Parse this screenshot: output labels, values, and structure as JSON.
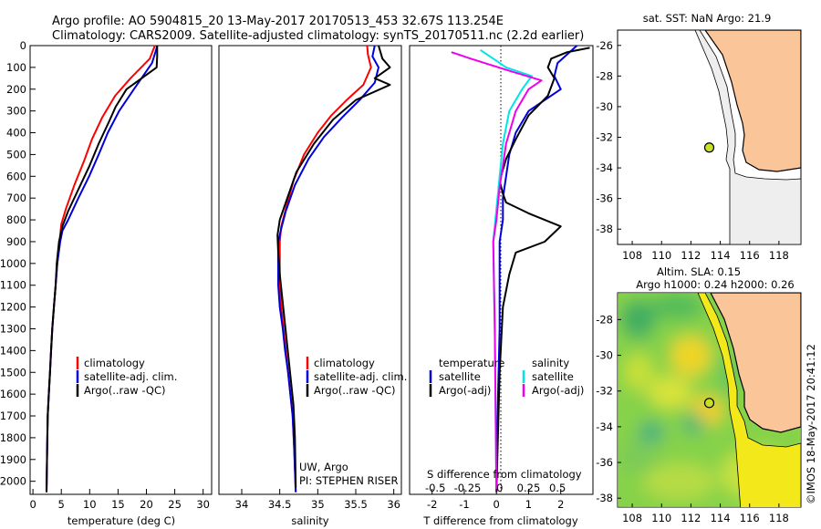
{
  "header": {
    "line1": "Argo profile: AO 5904815_20 13-May-2017 20170513_453 32.67S 113.254E",
    "line2": "Climatology: CARS2009. Satellite-adjusted climatology: synTS_20170511.nc (2.2d earlier)"
  },
  "colors": {
    "climatology": "#ff0000",
    "satellite": "#0000dd",
    "argo": "#000000",
    "salinity_sat": "#00e5e5",
    "salinity_argo": "#ee00ee",
    "land": "#fbc59a",
    "marker": "#c8e028"
  },
  "depth_axis": {
    "ticks": [
      0,
      100,
      200,
      300,
      400,
      500,
      600,
      700,
      800,
      900,
      1000,
      1100,
      1200,
      1300,
      1400,
      1500,
      1600,
      1700,
      1800,
      1900,
      2000
    ],
    "range": [
      0,
      2060
    ]
  },
  "legend_labels": {
    "climatology": "climatology",
    "satellite": "satellite-adj. clim.",
    "argo": "Argo(..raw -QC)"
  },
  "diff_legend": {
    "temperature": "temperature",
    "salinity": "salinity",
    "satellite": "satellite",
    "argo": "Argo(-adj)"
  },
  "pi_info": {
    "line1": "UW, Argo",
    "line2": "PI: STEPHEN RISER"
  },
  "side": {
    "sst_label": "sat. SST: NaN Argo: 21.9",
    "sla_line1": "Altim. SLA: 0.15",
    "sla_line2": "Argo h1000: 0.24 h2000: 0.26",
    "stamp": "©IMOS 18-May-2017 20:41:12"
  },
  "chart_data": [
    {
      "type": "line",
      "name": "temperature",
      "xlabel": "temperature (deg C)",
      "ylabel": "",
      "xlim": [
        -0.5,
        31.5
      ],
      "ylim": [
        2060,
        0
      ],
      "xticks": [
        0,
        5,
        10,
        15,
        20,
        25,
        30
      ],
      "series": [
        {
          "name": "climatology",
          "color": "#ff0000",
          "x": [
            21.5,
            21.2,
            20.6,
            17.2,
            14.5,
            12.2,
            10.4,
            9.0,
            7.3,
            5.8,
            5.0,
            4.7,
            4.3,
            4.0,
            3.7,
            3.4,
            3.2,
            3.0,
            2.8,
            2.6,
            2.5,
            2.4
          ],
          "y": [
            0,
            20,
            60,
            150,
            230,
            330,
            430,
            530,
            640,
            750,
            820,
            900,
            1000,
            1100,
            1200,
            1300,
            1400,
            1500,
            1600,
            1700,
            1850,
            2050
          ]
        },
        {
          "name": "satellite-adj. clim.",
          "color": "#0000dd",
          "x": [
            21.9,
            21.7,
            21.0,
            17.8,
            15.2,
            13.2,
            11.6,
            9.9,
            8.0,
            6.2,
            5.2,
            4.8,
            4.3,
            4.0,
            3.7,
            3.4,
            3.2,
            3.0,
            2.8,
            2.6,
            2.5,
            2.4
          ],
          "y": [
            0,
            20,
            80,
            200,
            300,
            400,
            500,
            600,
            700,
            800,
            850,
            900,
            1000,
            1100,
            1200,
            1300,
            1400,
            1500,
            1600,
            1700,
            1850,
            2050
          ]
        },
        {
          "name": "Argo(..raw -QC)",
          "color": "#000000",
          "x": [
            21.9,
            21.9,
            21.8,
            16.5,
            14.6,
            13.4,
            11.6,
            10.0,
            8.2,
            6.2,
            5.2,
            4.6,
            4.2,
            4.0,
            3.7,
            3.4,
            3.2,
            3.0,
            2.8,
            2.6,
            2.5,
            2.4
          ],
          "y": [
            0,
            50,
            100,
            200,
            280,
            350,
            450,
            550,
            650,
            760,
            830,
            900,
            1000,
            1100,
            1200,
            1300,
            1400,
            1500,
            1600,
            1700,
            1850,
            2050
          ]
        }
      ]
    },
    {
      "type": "line",
      "name": "salinity",
      "xlabel": "salinity",
      "ylabel": "",
      "xlim": [
        33.7,
        36.1
      ],
      "ylim": [
        2060,
        0
      ],
      "xticks": [
        34,
        34.5,
        35,
        35.5,
        36
      ],
      "series": [
        {
          "name": "climatology",
          "color": "#ff0000",
          "x": [
            35.65,
            35.66,
            35.7,
            35.6,
            35.38,
            35.18,
            35.0,
            34.82,
            34.68,
            34.58,
            34.52,
            34.5,
            34.5,
            34.5,
            34.52,
            34.55,
            34.58,
            34.61,
            34.64,
            34.67,
            34.69,
            34.71
          ],
          "y": [
            0,
            40,
            100,
            180,
            250,
            320,
            400,
            500,
            620,
            750,
            830,
            900,
            1000,
            1100,
            1200,
            1300,
            1400,
            1500,
            1600,
            1700,
            1850,
            2050
          ]
        },
        {
          "name": "satellite-adj. clim.",
          "color": "#0000dd",
          "x": [
            35.75,
            35.72,
            35.8,
            35.75,
            35.55,
            35.32,
            35.08,
            34.88,
            34.7,
            34.58,
            34.52,
            34.48,
            34.48,
            34.48,
            34.5,
            34.54,
            34.57,
            34.61,
            34.64,
            34.67,
            34.69,
            34.71
          ],
          "y": [
            0,
            50,
            100,
            170,
            250,
            330,
            420,
            520,
            640,
            760,
            840,
            900,
            1000,
            1100,
            1200,
            1300,
            1400,
            1500,
            1600,
            1700,
            1850,
            2050
          ]
        },
        {
          "name": "Argo(..raw -QC)",
          "color": "#000000",
          "x": [
            35.8,
            35.85,
            35.95,
            35.75,
            35.95,
            35.5,
            35.2,
            34.95,
            34.72,
            34.58,
            34.5,
            34.47,
            34.48,
            34.5,
            34.53,
            34.56,
            34.59,
            34.62,
            34.65,
            34.68,
            34.7,
            34.71
          ],
          "y": [
            0,
            60,
            100,
            150,
            180,
            250,
            340,
            450,
            580,
            720,
            800,
            870,
            950,
            1050,
            1150,
            1250,
            1350,
            1450,
            1550,
            1650,
            1800,
            2030
          ]
        }
      ]
    },
    {
      "type": "line",
      "name": "differences",
      "xlabel": "T difference from climatology",
      "x2label": "S difference from climatology",
      "xlim": [
        -2.7,
        3.0
      ],
      "ylim": [
        2060,
        0
      ],
      "xticks": [
        -2,
        -1,
        0,
        1,
        2
      ],
      "x2ticks": [
        "-0.5",
        "-0.25",
        "0",
        "0.25",
        "0.5"
      ],
      "series": [
        {
          "name": "temperature satellite",
          "color": "#0000dd",
          "x": [
            2.5,
            2.2,
            1.9,
            1.8,
            2.0,
            1.0,
            0.6,
            0.4,
            0.3,
            0.2,
            0.2,
            0.1,
            0.1,
            0.1,
            0.05,
            0.0
          ],
          "y": [
            0,
            40,
            80,
            140,
            200,
            300,
            400,
            500,
            600,
            700,
            800,
            900,
            1100,
            1300,
            1600,
            2050
          ]
        },
        {
          "name": "temperature Argo(-adj)",
          "color": "#000000",
          "x": [
            2.9,
            2.2,
            1.7,
            1.6,
            1.8,
            1.6,
            1.0,
            0.6,
            0.3,
            0.1,
            0.2,
            0.3,
            1.0,
            2.0,
            1.5,
            0.6,
            0.4,
            0.2,
            0.1,
            0.0
          ],
          "y": [
            10,
            30,
            60,
            100,
            150,
            230,
            320,
            430,
            520,
            620,
            680,
            720,
            770,
            830,
            900,
            950,
            1050,
            1200,
            1500,
            2050
          ]
        },
        {
          "name": "salinity satellite",
          "color": "#00e5e5",
          "x": [
            -0.5,
            -0.1,
            0.3,
            1.1,
            0.8,
            0.4,
            0.2,
            0.1,
            0.0,
            -0.1,
            -0.05,
            0.0
          ],
          "y": [
            20,
            60,
            100,
            140,
            200,
            300,
            450,
            600,
            750,
            900,
            1300,
            2050
          ]
        },
        {
          "name": "salinity Argo(-adj)",
          "color": "#ee00ee",
          "x": [
            -1.4,
            -0.8,
            0.5,
            1.4,
            1.0,
            0.6,
            0.3,
            0.1,
            0.0,
            -0.1,
            -0.05,
            0.0
          ],
          "y": [
            30,
            60,
            120,
            160,
            200,
            300,
            450,
            650,
            800,
            900,
            1300,
            2050
          ]
        }
      ]
    }
  ],
  "maps": [
    {
      "name": "sst-map",
      "lon_ticks": [
        108,
        110,
        112,
        114,
        116,
        118
      ],
      "lat_ticks": [
        -26,
        -28,
        -30,
        -32,
        -34,
        -36,
        -38
      ],
      "lon_range": [
        107,
        119.5
      ],
      "lat_range": [
        -39,
        -25
      ],
      "float": {
        "lon": 113.25,
        "lat": -32.67
      }
    },
    {
      "name": "sla-map",
      "lon_ticks": [
        108,
        110,
        112,
        114,
        116,
        118
      ],
      "lat_ticks": [
        -28,
        -30,
        -32,
        -34,
        -36,
        -38
      ],
      "lon_range": [
        107,
        119.5
      ],
      "lat_range": [
        -38.5,
        -26.5
      ],
      "float": {
        "lon": 113.25,
        "lat": -32.67
      }
    }
  ]
}
